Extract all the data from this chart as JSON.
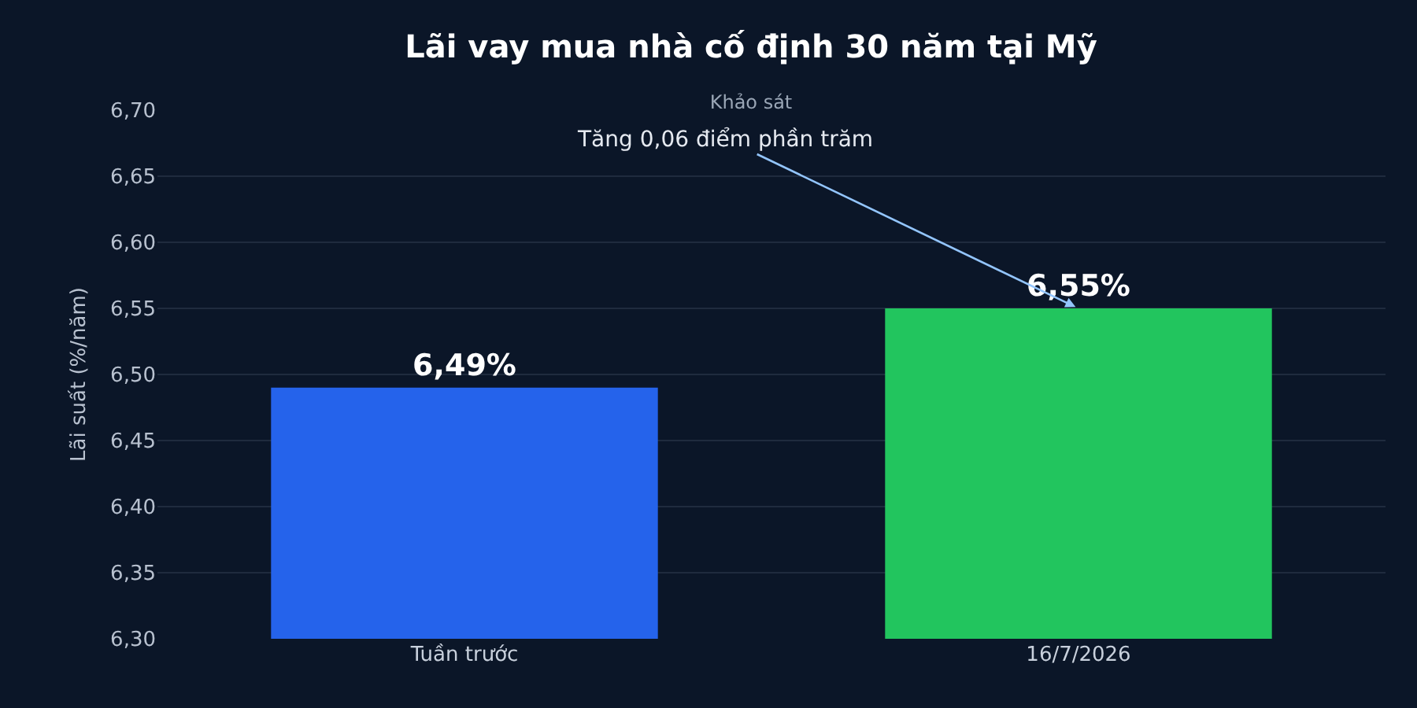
{
  "chart_data": {
    "type": "bar",
    "title": "Lãi vay mua nhà cố định 30 năm tại Mỹ",
    "subtitle": "Khảo sát",
    "ylabel": "Lãi suất (%/năm)",
    "categories": [
      "Tuần trước",
      "16/7/2026"
    ],
    "values": [
      6.49,
      6.55
    ],
    "colors": [
      "#2563eb",
      "#22c55e"
    ],
    "value_labels": [
      "6,49%",
      "6,55%"
    ],
    "ylim": [
      6.3,
      6.7
    ],
    "yticks": [
      {
        "value": 6.3,
        "label": "6,30"
      },
      {
        "value": 6.35,
        "label": "6,35"
      },
      {
        "value": 6.4,
        "label": "6,40"
      },
      {
        "value": 6.45,
        "label": "6,45"
      },
      {
        "value": 6.5,
        "label": "6,50"
      },
      {
        "value": 6.55,
        "label": "6,55"
      },
      {
        "value": 6.6,
        "label": "6,60"
      },
      {
        "value": 6.65,
        "label": "6,65"
      },
      {
        "value": 6.7,
        "label": "6,70"
      }
    ],
    "grid": "y",
    "annotations": [
      {
        "text": "Tăng 0,06 điểm phần trăm",
        "x": "16/7/2026",
        "y": 6.55
      }
    ]
  }
}
